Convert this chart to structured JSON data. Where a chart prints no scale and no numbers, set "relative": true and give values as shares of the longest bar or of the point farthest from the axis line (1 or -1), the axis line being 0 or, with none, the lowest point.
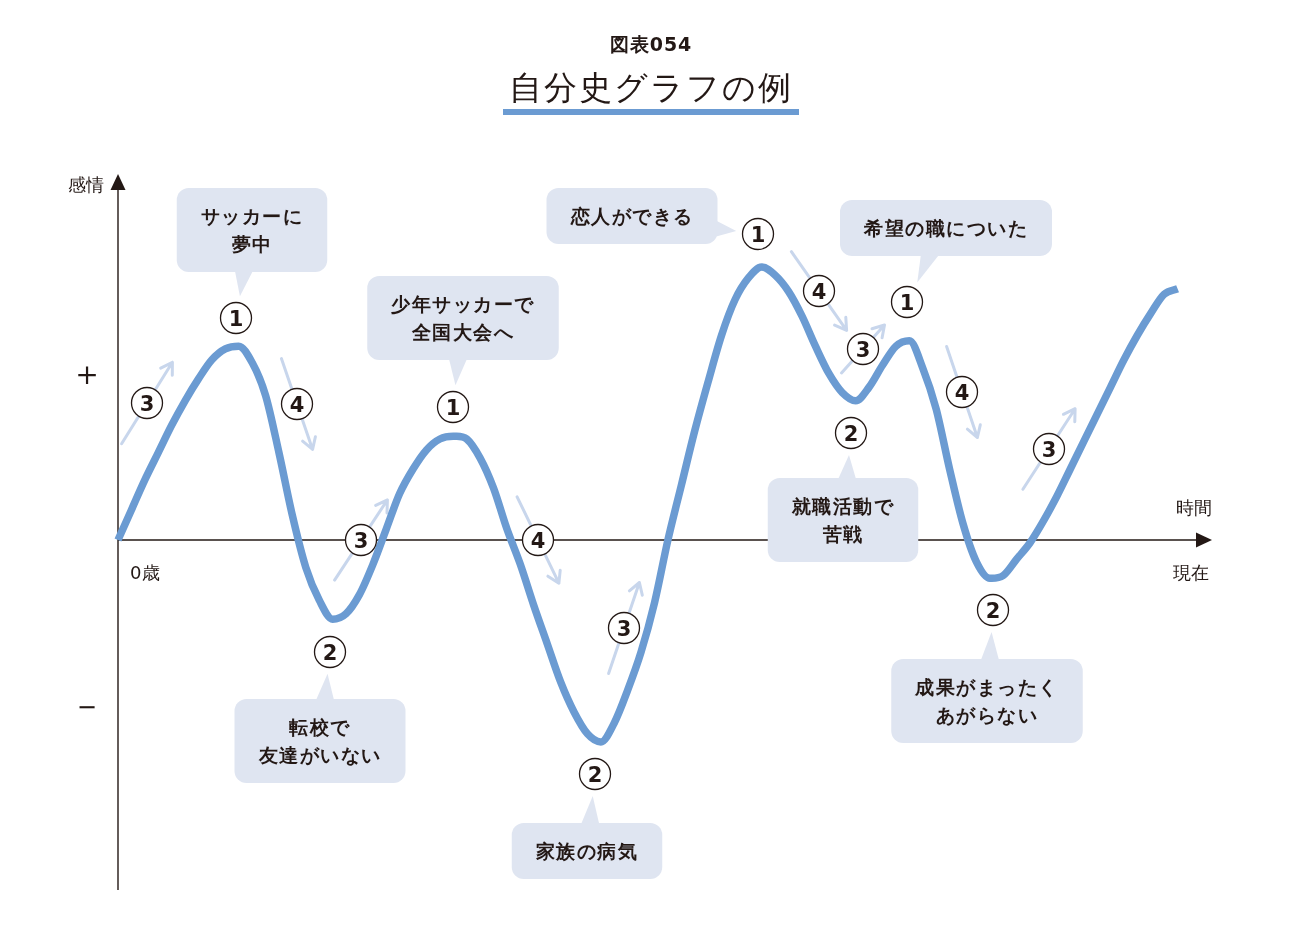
{
  "chart_data": {
    "type": "line",
    "title": "自分史グラフの例",
    "subtitle": "図表054",
    "xlabel": "時間",
    "ylabel": "感情",
    "relative": true,
    "line_style": "solid",
    "categories": [
      null,
      null,
      "0歳",
      null,
      null,
      null,
      null,
      null,
      null,
      null,
      null,
      null,
      null,
      null,
      null,
      null,
      null,
      null,
      null,
      null,
      null,
      null,
      null,
      null,
      null,
      null,
      null,
      null,
      null,
      null,
      null,
      null,
      null,
      null,
      null,
      null,
      null,
      null,
      null,
      null,
      null,
      null,
      null,
      null,
      null,
      null,
      null,
      null,
      null,
      null,
      null,
      null,
      null,
      null,
      null,
      null,
      null,
      null,
      null,
      null,
      null,
      null,
      null,
      null,
      null,
      null,
      null,
      null,
      null,
      null,
      null,
      null,
      null,
      null,
      null,
      null,
      null,
      null,
      null,
      null,
      "現在"
    ],
    "series": [
      {
        "color": "#6b9bd2",
        "values": [
          0,
          0.11,
          0.22,
          0.32,
          0.42,
          0.51,
          0.59,
          0.66,
          0.7,
          0.71,
          0.65,
          0.53,
          0.32,
          0.09,
          -0.1,
          -0.22,
          -0.29,
          -0.27,
          -0.2,
          -0.09,
          0.04,
          0.17,
          0.26,
          0.33,
          0.37,
          0.38,
          0.37,
          0.3,
          0.19,
          0.04,
          -0.09,
          -0.24,
          -0.38,
          -0.52,
          -0.63,
          -0.71,
          -0.74,
          -0.67,
          -0.55,
          -0.41,
          -0.23,
          0,
          0.2,
          0.4,
          0.58,
          0.75,
          0.88,
          0.96,
          1.0,
          0.97,
          0.91,
          0.82,
          0.71,
          0.61,
          0.54,
          0.51,
          0.56,
          0.64,
          0.71,
          0.73,
          0.63,
          0.48,
          0.26,
          0.06,
          -0.08,
          -0.14,
          -0.13,
          -0.07,
          -0.01,
          0.07,
          0.16,
          0.26,
          0.36,
          0.46,
          0.56,
          0.66,
          0.75,
          0.83,
          0.9,
          0.92,
          null
        ]
      }
    ],
    "annotations": [
      "＋",
      "－",
      "3",
      "サッカーに夢中",
      "1",
      "4",
      "2",
      "転校で友達がいない",
      "3",
      "少年サッカーで全国大会へ",
      "1",
      "4",
      "2",
      "家族の病気",
      "3",
      "恋人ができる",
      "1",
      "4",
      "2",
      "就職活動で苦戦",
      "3",
      "希望の職についた",
      "1",
      "4",
      "2",
      "成果がまったくあがらない",
      "3"
    ]
  }
}
